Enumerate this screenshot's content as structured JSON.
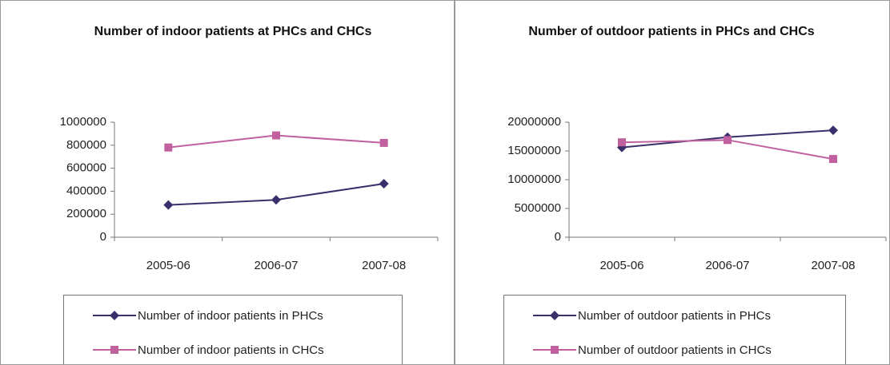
{
  "chart_data": [
    {
      "type": "line",
      "title": "Number of indoor patients at PHCs and CHCs",
      "categories": [
        "2005-06",
        "2006-07",
        "2007-08"
      ],
      "series": [
        {
          "name": "Number of indoor patients in PHCs",
          "color": "#3a2f6b",
          "marker": "diamond",
          "values": [
            280000,
            325000,
            465000
          ]
        },
        {
          "name": "Number of indoor patients in CHCs",
          "color": "#c0609e",
          "marker": "square",
          "values": [
            780000,
            885000,
            820000
          ]
        }
      ],
      "ylim": [
        0,
        1000000
      ],
      "yticks": [
        0,
        200000,
        400000,
        600000,
        800000,
        1000000
      ],
      "grid": false,
      "legend": "bottom"
    },
    {
      "type": "line",
      "title": "Number of outdoor patients in PHCs and CHCs",
      "categories": [
        "2005-06",
        "2006-07",
        "2007-08"
      ],
      "series": [
        {
          "name": "Number of outdoor patients in PHCs",
          "color": "#3a2f6b",
          "marker": "diamond",
          "values": [
            15600000,
            17400000,
            18600000
          ]
        },
        {
          "name": "Number of outdoor patients in CHCs",
          "color": "#c0609e",
          "marker": "square",
          "values": [
            16500000,
            16900000,
            13600000
          ]
        }
      ],
      "ylim": [
        0,
        20000000
      ],
      "yticks": [
        0,
        5000000,
        10000000,
        15000000,
        20000000
      ],
      "grid": false,
      "legend": "bottom"
    }
  ]
}
